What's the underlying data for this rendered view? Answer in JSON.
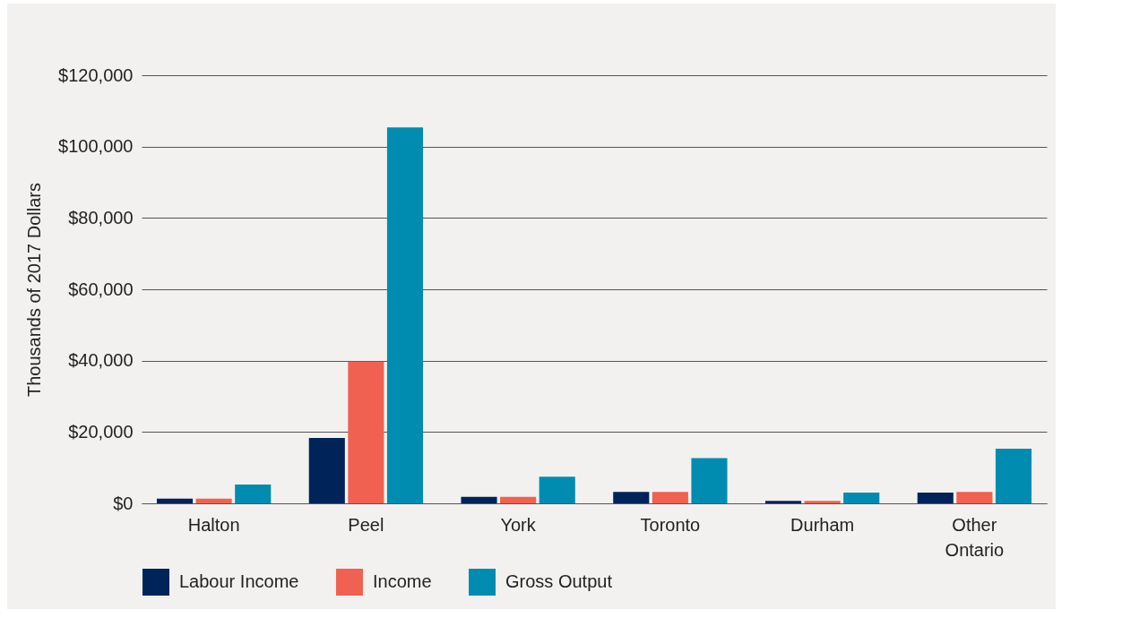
{
  "chart_data": {
    "type": "bar",
    "ylabel": "Thousands of 2017 Dollars",
    "categories": [
      "Halton",
      "Peel",
      "York",
      "Toronto",
      "Durham",
      "Other Ontario"
    ],
    "series": [
      {
        "name": "Labour Income",
        "color": "#00235a",
        "values": [
          1300,
          18300,
          1800,
          3200,
          700,
          3000
        ]
      },
      {
        "name": "Income",
        "color": "#f16152",
        "values": [
          1300,
          39700,
          1800,
          3200,
          700,
          3200
        ]
      },
      {
        "name": "Gross Output",
        "color": "#008cb0",
        "values": [
          5300,
          105400,
          7500,
          12700,
          3000,
          15300
        ]
      }
    ],
    "ylim": [
      0,
      120000
    ],
    "yticks": [
      {
        "value": 0,
        "label": "$0"
      },
      {
        "value": 20000,
        "label": "$20,000"
      },
      {
        "value": 40000,
        "label": "$40,000"
      },
      {
        "value": 60000,
        "label": "$60,000"
      },
      {
        "value": 80000,
        "label": "$80,000"
      },
      {
        "value": 100000,
        "label": "$100,000"
      },
      {
        "value": 120000,
        "label": "$120,000"
      }
    ],
    "grid": "y",
    "legend": "bottom left"
  }
}
